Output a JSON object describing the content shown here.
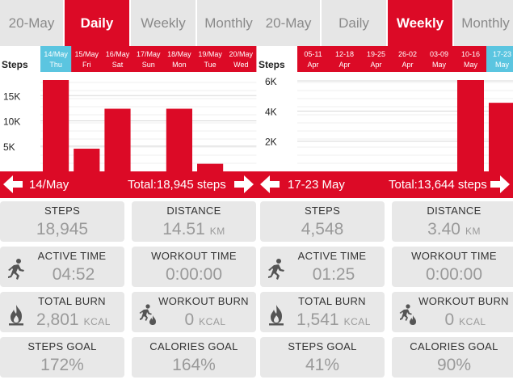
{
  "left": {
    "tabs": [
      {
        "label": "20-May",
        "width": 70,
        "active": false
      },
      {
        "label": "Daily",
        "width": 86,
        "active": true
      },
      {
        "label": "Weekly",
        "width": 80,
        "active": false
      },
      {
        "label": "Monthly",
        "width": 90,
        "active": false
      }
    ],
    "nav": {
      "period": "14/May",
      "total": "Total:18,945 steps"
    },
    "chart_data": {
      "type": "bar",
      "ylabel": "Steps",
      "yticks": [
        "15K",
        "10K",
        "5K"
      ],
      "ytick_values": [
        15000,
        10000,
        5000
      ],
      "ylim": [
        0,
        20000
      ],
      "categories": [
        {
          "date": "14/May",
          "day": "Thu",
          "selected": true
        },
        {
          "date": "15/May",
          "day": "Fri",
          "selected": false
        },
        {
          "date": "16/May",
          "day": "Sat",
          "selected": false
        },
        {
          "date": "17/May",
          "day": "Sun",
          "selected": false
        },
        {
          "date": "18/May",
          "day": "Mon",
          "selected": false
        },
        {
          "date": "19/May",
          "day": "Tue",
          "selected": false
        },
        {
          "date": "20/May",
          "day": "Wed",
          "selected": false
        }
      ],
      "values": [
        18945,
        4500,
        12400,
        0,
        12400,
        1500,
        0
      ]
    },
    "stats": {
      "steps": {
        "label": "STEPS",
        "value": "18,945"
      },
      "distance": {
        "label": "DISTANCE",
        "value": "14.51",
        "unit": "KM"
      },
      "active_time": {
        "label": "ACTIVE TIME",
        "value": "04:52"
      },
      "workout_time": {
        "label": "WORKOUT TIME",
        "value": "0:00:00"
      },
      "total_burn": {
        "label": "TOTAL BURN",
        "value": "2,801",
        "unit": "KCAL"
      },
      "workout_burn": {
        "label": "WORKOUT BURN",
        "value": "0",
        "unit": "KCAL"
      },
      "steps_goal": {
        "label": "STEPS GOAL",
        "value": "172%"
      },
      "calories_goal": {
        "label": "CALORIES GOAL",
        "value": "164%"
      }
    }
  },
  "right": {
    "tabs": [
      {
        "label": "20-May",
        "width": 80,
        "active": false
      },
      {
        "label": "Daily",
        "width": 82,
        "active": false
      },
      {
        "label": "Weekly",
        "width": 82,
        "active": true
      },
      {
        "label": "Monthly",
        "width": 80,
        "active": false
      }
    ],
    "nav": {
      "period": "17-23 May",
      "total": "Total:13,644 steps"
    },
    "chart_data": {
      "type": "bar",
      "ylabel": "Steps",
      "yticks": [
        "6K",
        "4K",
        "2K"
      ],
      "ytick_values": [
        6000,
        4000,
        2000
      ],
      "ylim": [
        0,
        6700
      ],
      "categories": [
        {
          "date": "05-11",
          "day": "Apr",
          "selected": false
        },
        {
          "date": "12-18",
          "day": "Apr",
          "selected": false
        },
        {
          "date": "19-25",
          "day": "Apr",
          "selected": false
        },
        {
          "date": "26-02",
          "day": "Apr",
          "selected": false
        },
        {
          "date": "03-09",
          "day": "May",
          "selected": false
        },
        {
          "date": "10-16",
          "day": "May",
          "selected": false
        },
        {
          "date": "17-23",
          "day": "May",
          "selected": true
        }
      ],
      "values": [
        0,
        0,
        0,
        0,
        0,
        6150,
        4548
      ]
    },
    "stats": {
      "steps": {
        "label": "STEPS",
        "value": "4,548"
      },
      "distance": {
        "label": "DISTANCE",
        "value": "3.40",
        "unit": "KM"
      },
      "active_time": {
        "label": "ACTIVE TIME",
        "value": "01:25"
      },
      "workout_time": {
        "label": "WORKOUT TIME",
        "value": "0:00:00"
      },
      "total_burn": {
        "label": "TOTAL BURN",
        "value": "1,541",
        "unit": "KCAL"
      },
      "workout_burn": {
        "label": "WORKOUT BURN",
        "value": "0",
        "unit": "KCAL"
      },
      "steps_goal": {
        "label": "STEPS GOAL",
        "value": "41%"
      },
      "calories_goal": {
        "label": "CALORIES GOAL",
        "value": "90%"
      }
    }
  },
  "colors": {
    "accent": "#dc0a26",
    "selected": "#5bc5e0",
    "card": "#e8e8e8",
    "value_text": "#9a9a9a"
  },
  "icons": {
    "active_time": "runner-icon",
    "total_burn": "flame-icon",
    "workout_burn": "runner-flame-icon"
  }
}
